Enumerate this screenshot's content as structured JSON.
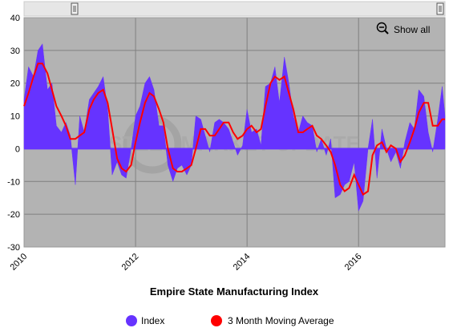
{
  "chart_data": {
    "type": "area",
    "title": "Empire State Manufacturing Index",
    "x_ticks": [
      "2010",
      "2012",
      "2014",
      "2016"
    ],
    "y_ticks": [
      "40",
      "30",
      "20",
      "10",
      "0",
      "-10",
      "-20",
      "-30"
    ],
    "ylim": [
      -30,
      40
    ],
    "xlim": [
      2010.0,
      2017.55
    ],
    "grid": true,
    "legend_position": "bottom",
    "watermark": "STEEL MARKET UPDATE",
    "zoom_button_label": "Show all",
    "colors": {
      "index": "#6633ff",
      "moving_average": "#ff0000",
      "plot_background": "#b3b3b3",
      "grid": "#808080",
      "navigator": "#e6e6e6"
    },
    "series": [
      {
        "name": "Index",
        "legend_label": "Index",
        "values": [
          [
            2010.0,
            15
          ],
          [
            2010.08,
            25
          ],
          [
            2010.17,
            22
          ],
          [
            2010.25,
            30
          ],
          [
            2010.33,
            32
          ],
          [
            2010.42,
            18
          ],
          [
            2010.5,
            20
          ],
          [
            2010.58,
            7
          ],
          [
            2010.67,
            5
          ],
          [
            2010.75,
            8
          ],
          [
            2010.83,
            4
          ],
          [
            2010.92,
            -11
          ],
          [
            2011.0,
            10
          ],
          [
            2011.08,
            5
          ],
          [
            2011.17,
            15
          ],
          [
            2011.25,
            17
          ],
          [
            2011.33,
            19
          ],
          [
            2011.42,
            22
          ],
          [
            2011.5,
            12
          ],
          [
            2011.58,
            -8
          ],
          [
            2011.67,
            -4
          ],
          [
            2011.75,
            -8
          ],
          [
            2011.83,
            -9
          ],
          [
            2011.92,
            0
          ],
          [
            2012.0,
            10
          ],
          [
            2012.08,
            13
          ],
          [
            2012.17,
            20
          ],
          [
            2012.25,
            22
          ],
          [
            2012.33,
            18
          ],
          [
            2012.42,
            7
          ],
          [
            2012.5,
            7
          ],
          [
            2012.58,
            -5
          ],
          [
            2012.67,
            -10
          ],
          [
            2012.75,
            -6
          ],
          [
            2012.83,
            -5
          ],
          [
            2012.92,
            -8
          ],
          [
            2013.0,
            -5
          ],
          [
            2013.08,
            10
          ],
          [
            2013.17,
            9
          ],
          [
            2013.25,
            4
          ],
          [
            2013.33,
            -1
          ],
          [
            2013.42,
            8
          ],
          [
            2013.5,
            9
          ],
          [
            2013.58,
            8
          ],
          [
            2013.67,
            6
          ],
          [
            2013.75,
            2
          ],
          [
            2013.83,
            -2
          ],
          [
            2013.92,
            1
          ],
          [
            2014.0,
            12
          ],
          [
            2014.08,
            5
          ],
          [
            2014.17,
            6
          ],
          [
            2014.25,
            1
          ],
          [
            2014.33,
            19
          ],
          [
            2014.42,
            20
          ],
          [
            2014.5,
            25
          ],
          [
            2014.58,
            14
          ],
          [
            2014.67,
            28
          ],
          [
            2014.75,
            20
          ],
          [
            2014.83,
            10
          ],
          [
            2014.92,
            5
          ],
          [
            2015.0,
            10
          ],
          [
            2015.08,
            8
          ],
          [
            2015.17,
            7
          ],
          [
            2015.25,
            -1
          ],
          [
            2015.33,
            3
          ],
          [
            2015.42,
            -2
          ],
          [
            2015.5,
            3
          ],
          [
            2015.58,
            -15
          ],
          [
            2015.67,
            -14
          ],
          [
            2015.75,
            -11
          ],
          [
            2015.83,
            -10
          ],
          [
            2015.92,
            -4
          ],
          [
            2016.0,
            -19
          ],
          [
            2016.08,
            -16
          ],
          [
            2016.17,
            0
          ],
          [
            2016.25,
            9
          ],
          [
            2016.33,
            -9
          ],
          [
            2016.42,
            6
          ],
          [
            2016.5,
            0
          ],
          [
            2016.58,
            -4
          ],
          [
            2016.67,
            -1
          ],
          [
            2016.75,
            -6
          ],
          [
            2016.83,
            2
          ],
          [
            2016.92,
            8
          ],
          [
            2017.0,
            6
          ],
          [
            2017.08,
            18
          ],
          [
            2017.17,
            16
          ],
          [
            2017.25,
            5
          ],
          [
            2017.33,
            -1
          ],
          [
            2017.42,
            9
          ],
          [
            2017.5,
            19
          ],
          [
            2017.55,
            10
          ]
        ]
      },
      {
        "name": "3 Month Moving Average",
        "legend_label": "3 Month Moving Average",
        "values": [
          [
            2010.0,
            13
          ],
          [
            2010.08,
            17
          ],
          [
            2010.17,
            22
          ],
          [
            2010.25,
            26
          ],
          [
            2010.33,
            26
          ],
          [
            2010.42,
            23
          ],
          [
            2010.5,
            18
          ],
          [
            2010.58,
            13
          ],
          [
            2010.67,
            10
          ],
          [
            2010.75,
            7
          ],
          [
            2010.83,
            3
          ],
          [
            2010.92,
            3
          ],
          [
            2011.0,
            4
          ],
          [
            2011.08,
            5
          ],
          [
            2011.17,
            12
          ],
          [
            2011.25,
            15
          ],
          [
            2011.33,
            17
          ],
          [
            2011.42,
            18
          ],
          [
            2011.5,
            14
          ],
          [
            2011.58,
            6
          ],
          [
            2011.67,
            -3
          ],
          [
            2011.75,
            -6
          ],
          [
            2011.83,
            -7
          ],
          [
            2011.92,
            -5
          ],
          [
            2012.0,
            2
          ],
          [
            2012.08,
            8
          ],
          [
            2012.17,
            14
          ],
          [
            2012.25,
            17
          ],
          [
            2012.33,
            16
          ],
          [
            2012.42,
            12
          ],
          [
            2012.5,
            8
          ],
          [
            2012.58,
            0
          ],
          [
            2012.67,
            -6
          ],
          [
            2012.75,
            -7
          ],
          [
            2012.83,
            -7
          ],
          [
            2012.92,
            -6
          ],
          [
            2013.0,
            -5
          ],
          [
            2013.08,
            0
          ],
          [
            2013.17,
            6
          ],
          [
            2013.25,
            6
          ],
          [
            2013.33,
            4
          ],
          [
            2013.42,
            4
          ],
          [
            2013.5,
            6
          ],
          [
            2013.58,
            8
          ],
          [
            2013.67,
            8
          ],
          [
            2013.75,
            5
          ],
          [
            2013.83,
            3
          ],
          [
            2013.92,
            4
          ],
          [
            2014.0,
            6
          ],
          [
            2014.08,
            7
          ],
          [
            2014.17,
            5
          ],
          [
            2014.25,
            6
          ],
          [
            2014.33,
            13
          ],
          [
            2014.42,
            20
          ],
          [
            2014.5,
            22
          ],
          [
            2014.58,
            21
          ],
          [
            2014.67,
            22
          ],
          [
            2014.75,
            17
          ],
          [
            2014.83,
            12
          ],
          [
            2014.92,
            5
          ],
          [
            2015.0,
            5
          ],
          [
            2015.08,
            6
          ],
          [
            2015.17,
            7
          ],
          [
            2015.25,
            4
          ],
          [
            2015.33,
            3
          ],
          [
            2015.42,
            1
          ],
          [
            2015.5,
            -1
          ],
          [
            2015.58,
            -5
          ],
          [
            2015.67,
            -11
          ],
          [
            2015.75,
            -13
          ],
          [
            2015.83,
            -12
          ],
          [
            2015.92,
            -8
          ],
          [
            2016.0,
            -11
          ],
          [
            2016.08,
            -14
          ],
          [
            2016.17,
            -13
          ],
          [
            2016.25,
            -2
          ],
          [
            2016.33,
            1
          ],
          [
            2016.42,
            2
          ],
          [
            2016.5,
            -1
          ],
          [
            2016.58,
            1
          ],
          [
            2016.67,
            0
          ],
          [
            2016.75,
            -4
          ],
          [
            2016.83,
            -2
          ],
          [
            2016.92,
            2
          ],
          [
            2017.0,
            6
          ],
          [
            2017.08,
            11
          ],
          [
            2017.17,
            14
          ],
          [
            2017.25,
            14
          ],
          [
            2017.33,
            7
          ],
          [
            2017.42,
            7
          ],
          [
            2017.5,
            9
          ],
          [
            2017.55,
            9
          ]
        ]
      }
    ]
  }
}
